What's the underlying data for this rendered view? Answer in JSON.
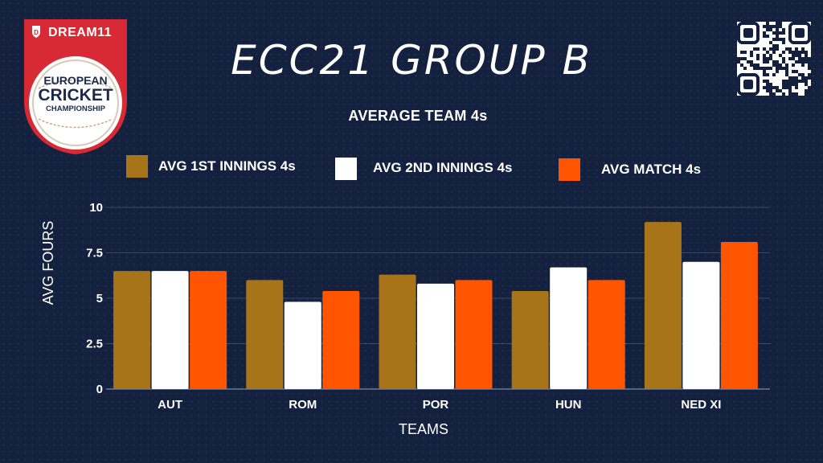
{
  "brand": {
    "sponsor": "DREAM11",
    "event_line1": "EUROPEAN",
    "event_line2": "CRICKET",
    "event_line3": "CHAMPIONSHIP"
  },
  "colors": {
    "background": "#13213f",
    "series1": "#a8741a",
    "series2": "#ffffff",
    "series3": "#ff5500",
    "logo_red": "#d82a34"
  },
  "header": {
    "title": "ECC21 GROUP B",
    "qr_icon": "qr-code-icon"
  },
  "chart_data": {
    "type": "bar",
    "title": "AVERAGE TEAM 4s",
    "xlabel": "TEAMS",
    "ylabel": "AVG FOURS",
    "ylim": [
      0,
      10
    ],
    "yticks": [
      0,
      2.5,
      5,
      7.5,
      10
    ],
    "ytick_labels": [
      "0",
      "2.5",
      "5",
      "7.5",
      "10"
    ],
    "grid": "horizontal",
    "legend_position": "top",
    "categories": [
      "AUT",
      "ROM",
      "POR",
      "HUN",
      "NED XI"
    ],
    "series": [
      {
        "name": "AVG 1ST INNINGS 4s",
        "color": "#a8741a",
        "values": [
          6.5,
          6.0,
          6.3,
          5.4,
          9.2
        ]
      },
      {
        "name": "AVG 2ND INNINGS 4s",
        "color": "#ffffff",
        "values": [
          6.5,
          4.8,
          5.8,
          6.7,
          7.0
        ]
      },
      {
        "name": "AVG MATCH 4s",
        "color": "#ff5500",
        "values": [
          6.5,
          5.4,
          6.0,
          6.0,
          8.1
        ]
      }
    ]
  }
}
